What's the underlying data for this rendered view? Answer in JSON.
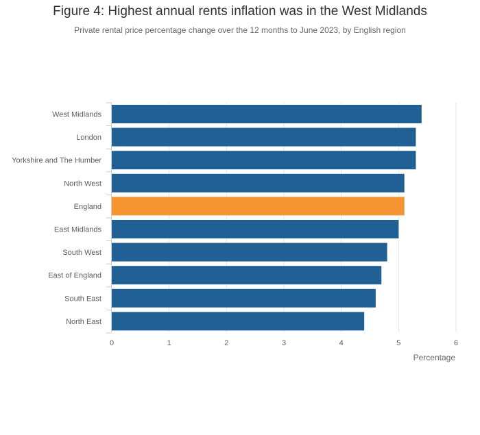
{
  "chart_data": {
    "type": "bar",
    "orientation": "horizontal",
    "title": "Figure 4: Highest annual rents inflation was in the West Midlands",
    "subtitle": "Private rental price percentage change over the 12 months to June 2023, by English region",
    "xlabel": "Percentage",
    "ylabel": "",
    "xlim": [
      0,
      6
    ],
    "x_ticks": [
      0,
      1,
      2,
      3,
      4,
      5,
      6
    ],
    "grid": true,
    "categories": [
      "West Midlands",
      "London",
      "Yorkshire and The Humber",
      "North West",
      "England",
      "East Midlands",
      "South West",
      "East of England",
      "South East",
      "North East"
    ],
    "values": [
      5.4,
      5.3,
      5.3,
      5.1,
      5.1,
      5.0,
      4.8,
      4.7,
      4.6,
      4.4
    ],
    "highlight_category": "England",
    "colors": {
      "bar": "#206095",
      "highlight": "#f39431",
      "grid": "#e6e6e6",
      "axis": "#cccccc"
    }
  }
}
